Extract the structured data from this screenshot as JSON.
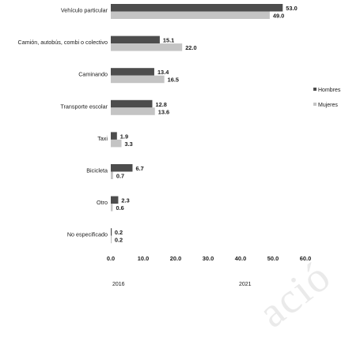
{
  "chart_data": {
    "type": "bar",
    "orientation": "horizontal",
    "categories": [
      "Vehículo particular",
      "Camión, autobús, combi o colectivo",
      "Caminando",
      "Transporte escolar",
      "Taxi",
      "Bicicleta",
      "Otro",
      "No especificado"
    ],
    "series": [
      {
        "name": "Hombres",
        "values": [
          53.0,
          15.1,
          13.4,
          12.8,
          1.9,
          6.7,
          2.3,
          0.2
        ],
        "color": "#4d4d4d"
      },
      {
        "name": "Mujeres",
        "values": [
          49.0,
          22.0,
          16.5,
          13.6,
          3.3,
          0.7,
          0.6,
          0.2
        ],
        "color": "#c4c4c4"
      }
    ],
    "xlim": [
      0,
      60
    ],
    "ticks": [
      "0.0",
      "10.0",
      "20.0",
      "30.0",
      "40.0",
      "50.0",
      "60.0"
    ],
    "legend_position": "right",
    "footer_labels": [
      "2016",
      "2021"
    ],
    "grid": false
  },
  "watermark": "ació"
}
